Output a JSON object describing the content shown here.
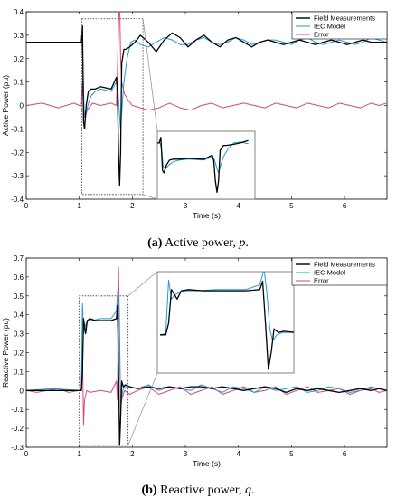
{
  "chart_data": [
    {
      "type": "line",
      "xlabel": "Time (s)",
      "ylabel": "Active Power (pu)",
      "xlim": [
        0,
        6.8
      ],
      "ylim": [
        -0.4,
        0.4
      ],
      "xticks": [
        0,
        1,
        2,
        3,
        4,
        5,
        6
      ],
      "yticks": [
        -0.4,
        -0.3,
        -0.2,
        -0.1,
        0,
        0.1,
        0.2,
        0.3,
        0.4
      ],
      "ytick_labels": [
        "-0.4",
        "-0.3",
        "-0.2",
        "-0.1",
        "0",
        "0.1",
        "0.2",
        "0.3",
        "0.4"
      ],
      "caption_letter": "(a)",
      "caption_text": " Active power, ",
      "caption_symbol": "p",
      "caption_end": ".",
      "legend": {
        "position": "top-right",
        "entries": [
          "Field Measurements",
          "IEC Model",
          "Error"
        ]
      },
      "colors": {
        "field": "#000000",
        "iec": "#1f9bd7",
        "error": "#d6477a"
      },
      "zoom_window": {
        "x": [
          1.05,
          2.2
        ],
        "y": [
          -0.38,
          0.37
        ]
      },
      "series": [
        {
          "name": "Field Measurements",
          "x": [
            0,
            0.5,
            1.0,
            1.04,
            1.06,
            1.08,
            1.1,
            1.13,
            1.17,
            1.22,
            1.3,
            1.4,
            1.6,
            1.7,
            1.72,
            1.74,
            1.76,
            1.78,
            1.8,
            1.84,
            1.88,
            1.95,
            2.05,
            2.15,
            2.3,
            2.45,
            2.6,
            2.75,
            2.9,
            3.05,
            3.2,
            3.35,
            3.5,
            3.65,
            3.8,
            3.95,
            4.1,
            4.25,
            4.4,
            4.55,
            4.7,
            4.85,
            5.0,
            5.15,
            5.3,
            5.45,
            5.6,
            5.75,
            5.9,
            6.05,
            6.2,
            6.35,
            6.5,
            6.65,
            6.8
          ],
          "y": [
            0.27,
            0.27,
            0.27,
            0.27,
            0.34,
            -0.07,
            -0.1,
            0.0,
            0.06,
            0.07,
            0.07,
            0.08,
            0.07,
            0.12,
            0.05,
            -0.2,
            -0.34,
            -0.2,
            0.18,
            0.24,
            0.24,
            0.25,
            0.27,
            0.3,
            0.27,
            0.23,
            0.28,
            0.31,
            0.29,
            0.25,
            0.28,
            0.3,
            0.27,
            0.25,
            0.28,
            0.29,
            0.27,
            0.25,
            0.27,
            0.28,
            0.27,
            0.26,
            0.27,
            0.28,
            0.27,
            0.26,
            0.27,
            0.28,
            0.27,
            0.26,
            0.27,
            0.28,
            0.27,
            0.27,
            0.27
          ]
        },
        {
          "name": "IEC Model",
          "x": [
            0,
            0.5,
            1.0,
            1.05,
            1.07,
            1.09,
            1.12,
            1.16,
            1.22,
            1.3,
            1.4,
            1.6,
            1.7,
            1.73,
            1.76,
            1.78,
            1.8,
            1.84,
            1.9,
            1.97,
            2.05,
            2.15,
            2.3,
            2.45,
            2.6,
            2.75,
            2.9,
            3.05,
            3.2,
            3.35,
            3.5,
            3.65,
            3.8,
            3.95,
            4.1,
            4.25,
            4.4,
            4.55,
            4.7,
            4.85,
            5.0,
            5.15,
            5.3,
            5.45,
            5.6,
            5.75,
            5.9,
            6.05,
            6.2,
            6.35,
            6.5,
            6.65,
            6.8
          ],
          "y": [
            0.27,
            0.27,
            0.27,
            0.27,
            0.18,
            -0.02,
            -0.05,
            0.0,
            0.04,
            0.06,
            0.07,
            0.06,
            0.1,
            0.06,
            -0.05,
            -0.1,
            -0.03,
            0.1,
            0.2,
            0.27,
            0.28,
            0.26,
            0.25,
            0.27,
            0.29,
            0.28,
            0.26,
            0.26,
            0.28,
            0.29,
            0.27,
            0.26,
            0.27,
            0.29,
            0.28,
            0.26,
            0.27,
            0.28,
            0.28,
            0.27,
            0.26,
            0.28,
            0.29,
            0.27,
            0.26,
            0.27,
            0.28,
            0.27,
            0.26,
            0.27,
            0.29,
            0.28,
            0.27
          ]
        },
        {
          "name": "Error",
          "x": [
            0,
            0.3,
            0.6,
            0.9,
            1.0,
            1.04,
            1.06,
            1.08,
            1.1,
            1.15,
            1.25,
            1.4,
            1.6,
            1.7,
            1.72,
            1.74,
            1.76,
            1.78,
            1.8,
            1.85,
            1.9,
            2.0,
            2.15,
            2.3,
            2.5,
            2.7,
            2.9,
            3.1,
            3.3,
            3.5,
            3.7,
            3.9,
            4.1,
            4.3,
            4.5,
            4.7,
            4.9,
            5.1,
            5.3,
            5.5,
            5.7,
            5.9,
            6.1,
            6.3,
            6.5,
            6.65,
            6.8
          ],
          "y": [
            0.0,
            0.01,
            -0.01,
            0.01,
            0.0,
            0.0,
            0.1,
            -0.02,
            -0.05,
            -0.02,
            0.01,
            0.0,
            0.01,
            0.0,
            0.15,
            0.35,
            0.45,
            0.2,
            0.1,
            0.05,
            0.03,
            0.0,
            -0.01,
            -0.02,
            -0.01,
            0.01,
            -0.01,
            -0.02,
            0.0,
            0.01,
            -0.01,
            0.0,
            0.01,
            0.0,
            -0.01,
            0.01,
            0.0,
            -0.01,
            0.01,
            0.0,
            -0.01,
            0.01,
            0.0,
            -0.01,
            0.01,
            0.0,
            0.01
          ]
        }
      ]
    },
    {
      "type": "line",
      "xlabel": "Time (s)",
      "ylabel": "Reactive Power (pu)",
      "xlim": [
        0,
        6.8
      ],
      "ylim": [
        -0.3,
        0.7
      ],
      "xticks": [
        0,
        1,
        2,
        3,
        4,
        5,
        6
      ],
      "yticks": [
        -0.3,
        -0.2,
        -0.1,
        0,
        0.1,
        0.2,
        0.3,
        0.4,
        0.5,
        0.6,
        0.7
      ],
      "ytick_labels": [
        "-0.3",
        "-0.2",
        "-0.1",
        "0",
        "0.1",
        "0.2",
        "0.3",
        "0.4",
        "0.5",
        "0.6",
        "0.7"
      ],
      "caption_letter": "(b)",
      "caption_text": " Reactive power, ",
      "caption_symbol": "q",
      "caption_end": ".",
      "legend": {
        "position": "top-right",
        "entries": [
          "Field Measurements",
          "IEC Model",
          "Error"
        ]
      },
      "colors": {
        "field": "#000000",
        "iec": "#1f9bd7",
        "error": "#d6477a"
      },
      "zoom_window": {
        "x": [
          1.0,
          1.92
        ],
        "y": [
          -0.29,
          0.5
        ]
      },
      "series": [
        {
          "name": "Field Measurements",
          "x": [
            0,
            0.5,
            1.0,
            1.04,
            1.06,
            1.08,
            1.1,
            1.12,
            1.15,
            1.2,
            1.3,
            1.45,
            1.6,
            1.7,
            1.72,
            1.74,
            1.76,
            1.78,
            1.8,
            1.83,
            1.87,
            1.95,
            2.1,
            2.3,
            2.5,
            2.7,
            2.9,
            3.1,
            3.3,
            3.5,
            3.7,
            3.9,
            4.1,
            4.3,
            4.5,
            4.7,
            4.9,
            5.1,
            5.3,
            5.5,
            5.7,
            5.9,
            6.1,
            6.3,
            6.5,
            6.65,
            6.8
          ],
          "y": [
            0.0,
            0.0,
            0.0,
            0.0,
            0.1,
            0.38,
            0.34,
            0.3,
            0.37,
            0.38,
            0.37,
            0.37,
            0.37,
            0.38,
            0.45,
            0.1,
            -0.29,
            -0.15,
            0.05,
            0.02,
            0.03,
            0.02,
            0.01,
            0.02,
            0.01,
            0.02,
            0.01,
            0.02,
            0.02,
            0.01,
            0.02,
            0.01,
            0.0,
            0.01,
            0.02,
            0.01,
            -0.01,
            0.01,
            0.0,
            0.01,
            0.0,
            -0.01,
            0.0,
            0.01,
            0.0,
            0.01,
            0.0
          ]
        },
        {
          "name": "IEC Model",
          "x": [
            0,
            0.5,
            1.0,
            1.04,
            1.06,
            1.08,
            1.11,
            1.14,
            1.18,
            1.25,
            1.4,
            1.6,
            1.7,
            1.73,
            1.75,
            1.77,
            1.79,
            1.82,
            1.86,
            1.95,
            2.1,
            2.3,
            2.5,
            2.7,
            2.9,
            3.1,
            3.3,
            3.5,
            3.7,
            3.9,
            4.1,
            4.3,
            4.5,
            4.7,
            4.9,
            5.1,
            5.3,
            5.5,
            5.7,
            5.9,
            6.1,
            6.3,
            6.5,
            6.65,
            6.8
          ],
          "y": [
            0.0,
            0.01,
            0.0,
            0.01,
            0.46,
            0.3,
            0.34,
            0.36,
            0.37,
            0.37,
            0.38,
            0.38,
            0.42,
            0.55,
            0.35,
            0.05,
            -0.05,
            0.0,
            0.02,
            0.02,
            0.01,
            0.03,
            0.0,
            0.02,
            0.01,
            0.0,
            0.03,
            0.01,
            -0.01,
            0.02,
            0.01,
            -0.01,
            0.02,
            0.0,
            0.01,
            0.02,
            -0.01,
            0.0,
            0.02,
            0.01,
            -0.01,
            0.0,
            0.02,
            0.01,
            0.0
          ]
        },
        {
          "name": "Error",
          "x": [
            0,
            0.2,
            0.4,
            0.6,
            0.8,
            1.0,
            1.04,
            1.06,
            1.08,
            1.1,
            1.14,
            1.2,
            1.4,
            1.6,
            1.7,
            1.72,
            1.74,
            1.76,
            1.78,
            1.8,
            1.85,
            1.95,
            2.1,
            2.3,
            2.5,
            2.7,
            2.9,
            3.1,
            3.3,
            3.5,
            3.7,
            3.9,
            4.1,
            4.3,
            4.5,
            4.7,
            4.9,
            5.1,
            5.3,
            5.5,
            5.7,
            5.9,
            6.1,
            6.3,
            6.5,
            6.65,
            6.8
          ],
          "y": [
            0.0,
            -0.01,
            0.0,
            0.01,
            -0.01,
            0.0,
            0.0,
            0.2,
            -0.18,
            -0.05,
            0.0,
            -0.01,
            0.0,
            -0.01,
            0.05,
            -0.05,
            0.65,
            0.3,
            -0.1,
            -0.05,
            0.0,
            -0.02,
            0.0,
            0.02,
            -0.02,
            0.0,
            0.02,
            -0.02,
            0.0,
            0.02,
            -0.02,
            0.0,
            0.02,
            -0.01,
            0.0,
            0.02,
            -0.02,
            0.0,
            0.02,
            -0.01,
            0.0,
            0.01,
            -0.02,
            0.0,
            0.01,
            -0.01,
            0.0
          ]
        }
      ]
    }
  ]
}
